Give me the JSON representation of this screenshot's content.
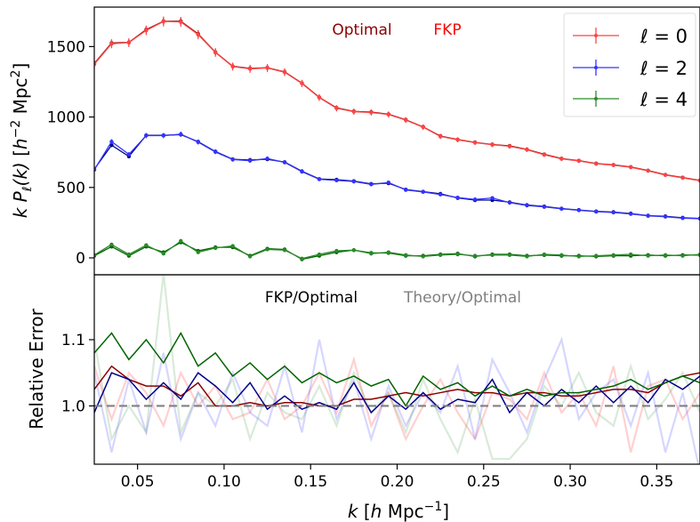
{
  "chart_data": [
    {
      "panel": "top",
      "type": "line",
      "ylabel": "k P_ℓ(k) [h^-2 Mpc^2]",
      "xlim": [
        0.025,
        0.375
      ],
      "ylim": [
        -120,
        1780
      ],
      "yticks": [
        "0",
        "500",
        "1000",
        "1500"
      ],
      "ytick_values": [
        0,
        500,
        1000,
        1500
      ],
      "annotations": [
        {
          "text": "Optimal",
          "color": "#8b0000"
        },
        {
          "text": "FKP",
          "color": "#ff0000"
        }
      ],
      "legend": {
        "placement": "top-right",
        "entries": [
          {
            "prefix": "ℓ",
            "suffix": " = 0",
            "color": "#ff4444"
          },
          {
            "prefix": "ℓ",
            "suffix": " = 2",
            "color": "#3333ff"
          },
          {
            "prefix": "ℓ",
            "suffix": " = 4",
            "color": "#2a8a2a"
          }
        ]
      },
      "x": [
        0.025,
        0.035,
        0.045,
        0.055,
        0.065,
        0.075,
        0.085,
        0.095,
        0.105,
        0.115,
        0.125,
        0.135,
        0.145,
        0.155,
        0.165,
        0.175,
        0.185,
        0.195,
        0.205,
        0.215,
        0.225,
        0.235,
        0.245,
        0.255,
        0.265,
        0.275,
        0.285,
        0.295,
        0.305,
        0.315,
        0.325,
        0.335,
        0.345,
        0.355,
        0.365,
        0.375
      ],
      "series": [
        {
          "name": "ℓ = 0 Optimal",
          "color": "#8b0000",
          "values": [
            1380,
            1525,
            1530,
            1620,
            1680,
            1680,
            1590,
            1460,
            1360,
            1345,
            1350,
            1320,
            1240,
            1140,
            1065,
            1040,
            1035,
            1020,
            980,
            930,
            865,
            840,
            820,
            805,
            795,
            770,
            735,
            705,
            690,
            670,
            660,
            645,
            620,
            590,
            570,
            550
          ]
        },
        {
          "name": "ℓ = 0 FKP",
          "color": "#ff4444",
          "values": [
            1375,
            1520,
            1528,
            1615,
            1678,
            1675,
            1585,
            1458,
            1358,
            1342,
            1348,
            1318,
            1238,
            1138,
            1062,
            1038,
            1032,
            1018,
            978,
            928,
            862,
            838,
            818,
            803,
            792,
            768,
            732,
            703,
            688,
            668,
            658,
            643,
            618,
            588,
            568,
            548
          ]
        },
        {
          "name": "ℓ = 2 Optimal",
          "color": "#00008b",
          "values": [
            630,
            800,
            720,
            870,
            870,
            875,
            825,
            755,
            700,
            695,
            700,
            680,
            615,
            560,
            555,
            545,
            525,
            530,
            485,
            470,
            455,
            425,
            410,
            410,
            395,
            375,
            365,
            350,
            340,
            330,
            325,
            315,
            300,
            295,
            285,
            280
          ]
        },
        {
          "name": "ℓ = 2 FKP",
          "color": "#3333ff",
          "values": [
            625,
            825,
            735,
            868,
            868,
            878,
            822,
            752,
            698,
            690,
            705,
            678,
            612,
            558,
            550,
            542,
            522,
            535,
            482,
            468,
            450,
            428,
            415,
            425,
            392,
            372,
            362,
            348,
            338,
            328,
            322,
            312,
            298,
            292,
            282,
            278
          ]
        },
        {
          "name": "ℓ = 4 Optimal",
          "color": "#006400",
          "values": [
            15,
            80,
            15,
            80,
            40,
            110,
            50,
            75,
            75,
            15,
            65,
            60,
            -10,
            15,
            40,
            55,
            35,
            35,
            15,
            15,
            25,
            30,
            10,
            25,
            25,
            15,
            20,
            15,
            15,
            10,
            15,
            15,
            20,
            15,
            20,
            20
          ]
        },
        {
          "name": "ℓ = 4 FKP",
          "color": "#2a8a2a",
          "values": [
            20,
            95,
            25,
            90,
            30,
            120,
            40,
            70,
            85,
            10,
            60,
            55,
            -5,
            25,
            50,
            55,
            30,
            40,
            20,
            10,
            20,
            25,
            15,
            20,
            20,
            10,
            25,
            20,
            10,
            15,
            20,
            25,
            15,
            20,
            15,
            25
          ]
        }
      ]
    },
    {
      "panel": "bottom",
      "type": "line",
      "xlabel": "k [h Mpc^-1]",
      "ylabel": "Relative Error",
      "xlim": [
        0.025,
        0.375
      ],
      "ylim": [
        0.912,
        1.198
      ],
      "xticks": [
        "0.05",
        "0.10",
        "0.15",
        "0.20",
        "0.25",
        "0.30",
        "0.35"
      ],
      "xtick_values": [
        0.05,
        0.1,
        0.15,
        0.2,
        0.25,
        0.3,
        0.35
      ],
      "yticks": [
        "1.0",
        "1.1"
      ],
      "ytick_values": [
        1.0,
        1.1
      ],
      "annotations": [
        {
          "text": "FKP/Optimal",
          "color": "#000000"
        },
        {
          "text": "Theory/Optimal",
          "color": "#808080"
        }
      ],
      "reference_line": {
        "y": 1.0,
        "style": "dashed",
        "color": "#808080"
      },
      "x": [
        0.025,
        0.035,
        0.045,
        0.055,
        0.065,
        0.075,
        0.085,
        0.095,
        0.105,
        0.115,
        0.125,
        0.135,
        0.145,
        0.155,
        0.165,
        0.175,
        0.185,
        0.195,
        0.205,
        0.215,
        0.225,
        0.235,
        0.245,
        0.255,
        0.265,
        0.275,
        0.285,
        0.295,
        0.305,
        0.315,
        0.325,
        0.335,
        0.345,
        0.355,
        0.365,
        0.375
      ],
      "series": [
        {
          "name": "Theory/Optimal ℓ = 0",
          "color": "#ff4444",
          "opacity": 0.25,
          "values": [
            1.06,
            0.98,
            1.05,
            1.02,
            0.97,
            1.05,
            1.0,
            1.03,
            0.98,
            0.99,
            1.04,
            0.98,
            1.0,
            1.05,
            0.99,
            1.07,
            0.97,
            1.02,
            0.95,
            1.0,
            1.04,
            0.99,
            0.95,
            1.02,
            1.01,
            0.98,
            1.05,
            0.99,
            1.02,
            0.97,
            1.06,
            0.93,
            1.03,
            1.04,
            0.98,
            1.02
          ]
        },
        {
          "name": "Theory/Optimal ℓ = 2",
          "color": "#3333ff",
          "opacity": 0.2,
          "values": [
            1.05,
            0.93,
            1.04,
            0.96,
            1.08,
            0.95,
            1.02,
            0.97,
            1.05,
            0.99,
            0.97,
            1.06,
            0.96,
            1.1,
            0.98,
            1.04,
            0.95,
            1.03,
            0.97,
            1.02,
            0.99,
            1.06,
            0.95,
            1.07,
            1.02,
            0.96,
            1.04,
            1.1,
            0.98,
            1.02,
            1.04,
            0.97,
            1.05,
            0.93,
            1.02,
            0.9
          ]
        },
        {
          "name": "Theory/Optimal ℓ = 4",
          "color": "#2a8a2a",
          "opacity": 0.18,
          "values": [
            1.1,
            0.95,
            1.0,
            0.96,
            1.2,
            0.96,
            1.02,
            1.0,
            1.04,
            0.95,
            1.02,
            0.99,
            0.98,
            1.03,
            0.97,
            1.05,
            0.99,
            1.02,
            0.96,
            1.04,
            0.98,
            0.93,
            1.01,
            0.92,
            0.92,
            0.95,
            1.03,
            1.0,
            1.05,
            0.99,
            0.97,
            1.06,
            0.98,
            1.01,
            1.05,
            0.99
          ]
        },
        {
          "name": "FKP/Optimal ℓ = 0",
          "color": "#8b0000",
          "values": [
            1.025,
            1.06,
            1.04,
            1.03,
            1.03,
            1.015,
            1.035,
            1.0,
            1.0,
            1.005,
            1.0,
            1.005,
            1.005,
            1.0,
            1.0,
            1.01,
            1.01,
            1.015,
            1.02,
            1.015,
            1.02,
            1.025,
            1.02,
            1.02,
            1.015,
            1.02,
            1.02,
            1.015,
            1.015,
            1.02,
            1.025,
            1.025,
            1.02,
            1.035,
            1.045,
            1.05
          ]
        },
        {
          "name": "FKP/Optimal ℓ = 2",
          "color": "#00008b",
          "values": [
            0.99,
            1.05,
            1.04,
            1.01,
            1.035,
            1.01,
            1.05,
            1.03,
            1.005,
            1.035,
            0.995,
            1.015,
            0.995,
            1.005,
            0.995,
            1.035,
            0.99,
            1.015,
            0.995,
            1.02,
            0.995,
            1.01,
            1.005,
            1.04,
            0.99,
            1.02,
            1.0,
            1.025,
            1.005,
            1.03,
            1.005,
            1.03,
            1.005,
            1.04,
            1.025,
            1.045
          ]
        },
        {
          "name": "FKP/Optimal ℓ = 4",
          "color": "#006400",
          "values": [
            1.08,
            1.11,
            1.07,
            1.1,
            1.065,
            1.11,
            1.06,
            1.08,
            1.045,
            1.065,
            1.04,
            1.06,
            1.035,
            1.05,
            1.035,
            1.045,
            1.03,
            1.04,
            1.0,
            1.045,
            1.025,
            1.035,
            1.015,
            1.03,
            1.015,
            1.025,
            1.015,
            1.02,
            1.02,
            1.025,
            1.03,
            1.04,
            1.025,
            1.035,
            1.045,
            1.035
          ]
        }
      ]
    }
  ]
}
